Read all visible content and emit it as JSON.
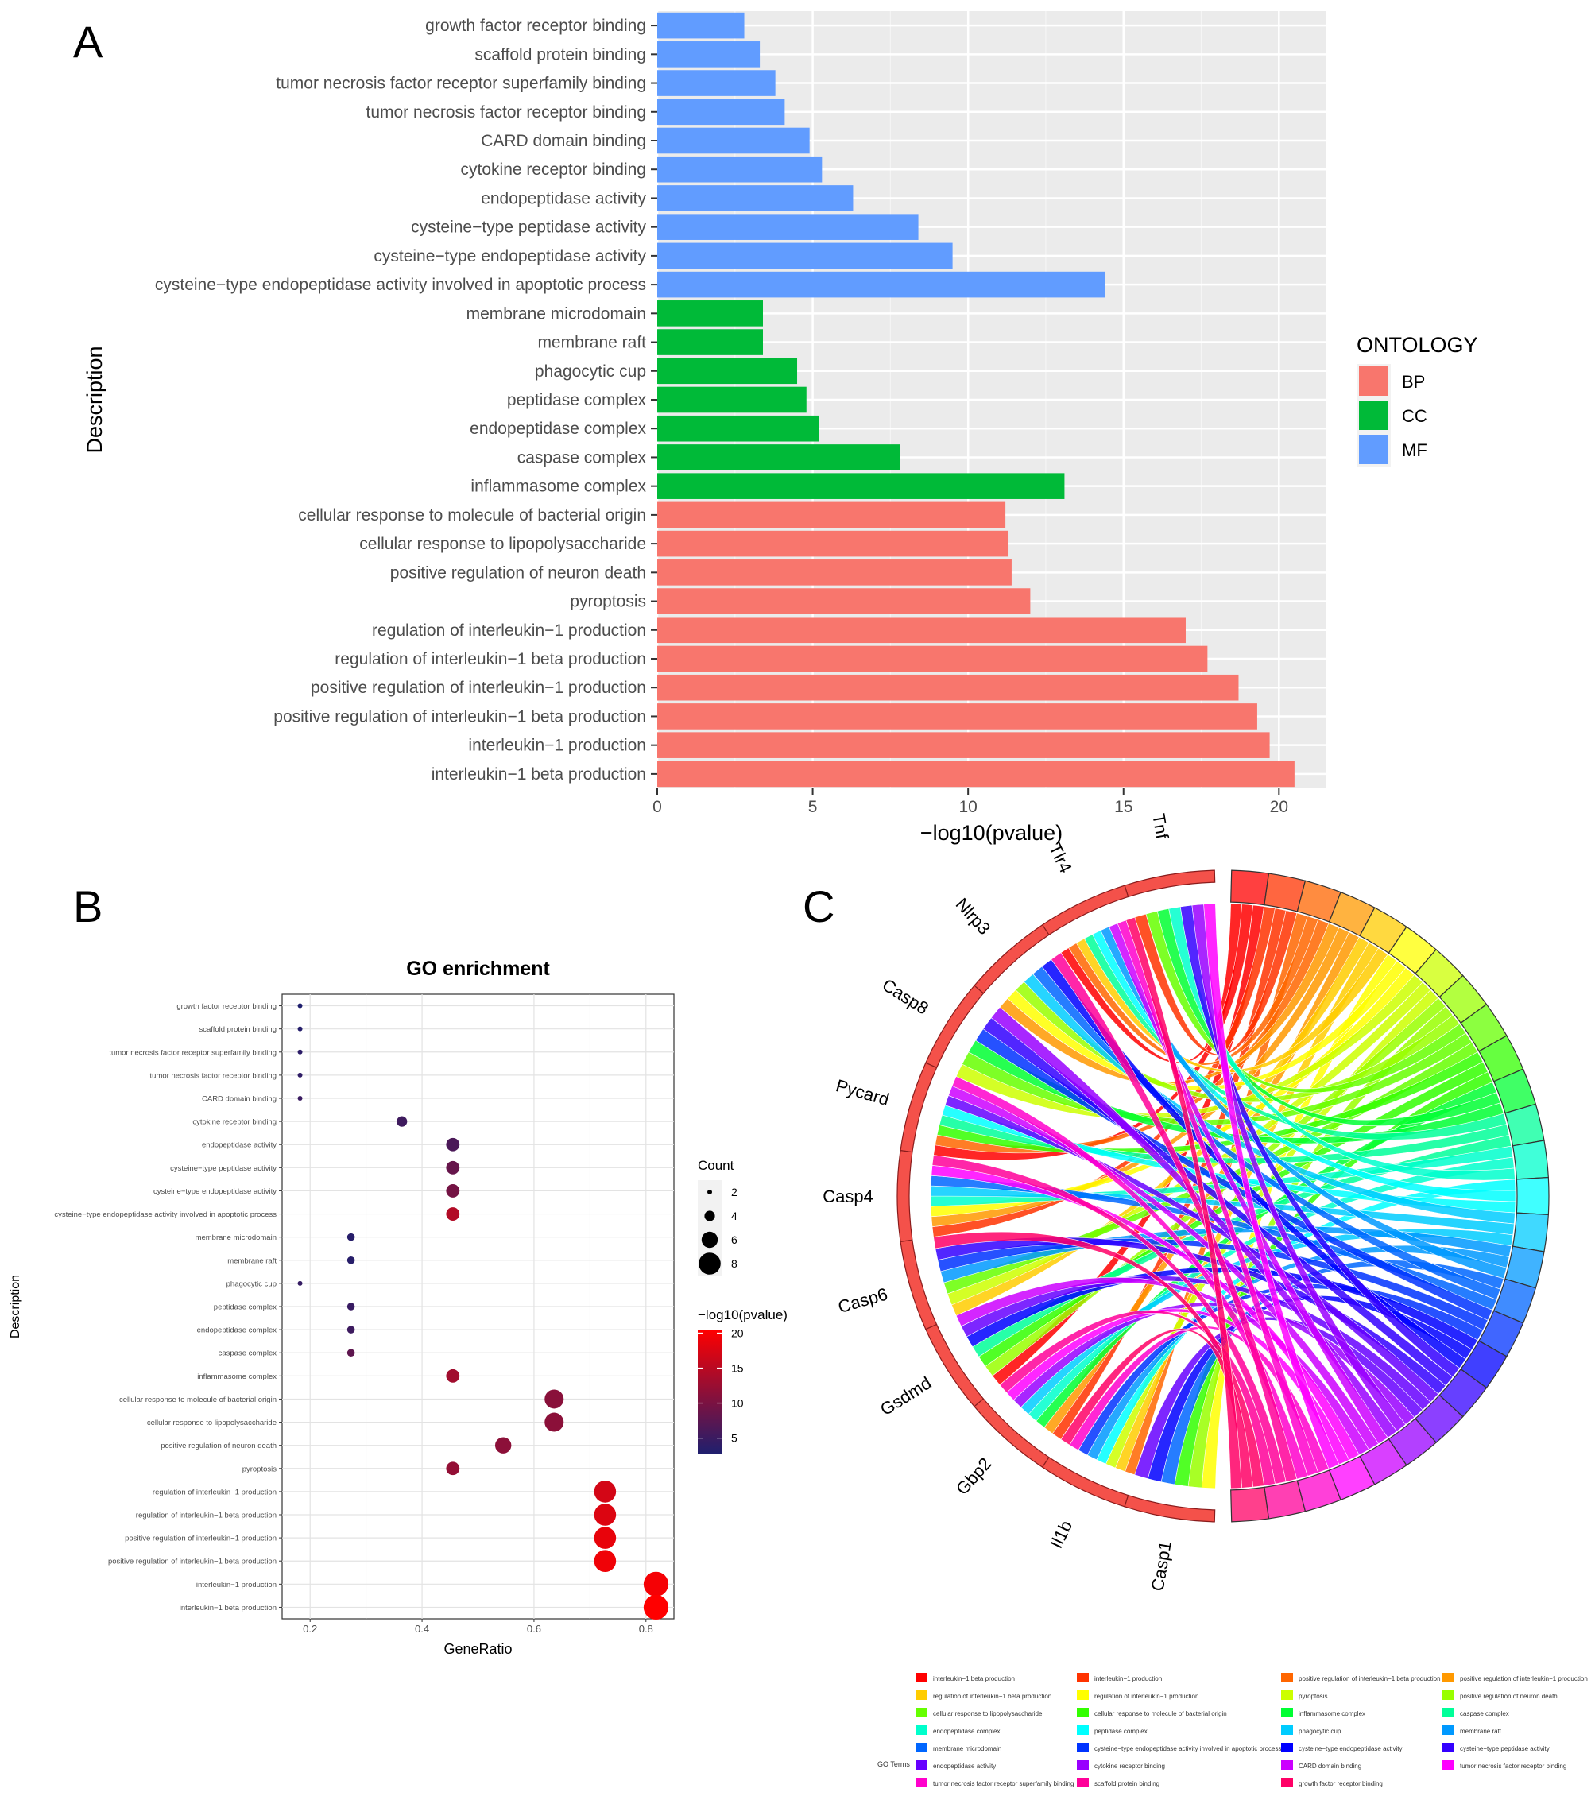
{
  "panels": {
    "a_letter": "A",
    "b_letter": "B",
    "c_letter": "C"
  },
  "chart_data": [
    {
      "type": "bar",
      "orientation": "horizontal",
      "xlabel": "−log10(pvalue)",
      "ylabel": "Description",
      "xlim": [
        0,
        21.5
      ],
      "xticks": [
        0,
        5,
        10,
        15,
        20
      ],
      "grid": true,
      "legend": {
        "title": "ONTOLOGY",
        "position": "right",
        "entries": [
          "BP",
          "CC",
          "MF"
        ]
      },
      "colors": {
        "BP": "#F8766D",
        "CC": "#00BA38",
        "MF": "#619CFF"
      },
      "categories": [
        "growth factor receptor binding",
        "scaffold protein binding",
        "tumor necrosis factor receptor superfamily binding",
        "tumor necrosis factor receptor binding",
        "CARD domain binding",
        "cytokine receptor binding",
        "endopeptidase activity",
        "cysteine−type peptidase activity",
        "cysteine−type endopeptidase activity",
        "cysteine−type endopeptidase activity involved in apoptotic process",
        "membrane microdomain",
        "membrane raft",
        "phagocytic cup",
        "peptidase complex",
        "endopeptidase complex",
        "caspase complex",
        "inflammasome complex",
        "cellular response to molecule of bacterial origin",
        "cellular response to lipopolysaccharide",
        "positive regulation of neuron death",
        "pyroptosis",
        "regulation of interleukin−1 production",
        "regulation of interleukin−1 beta production",
        "positive regulation of interleukin−1 production",
        "positive regulation of interleukin−1 beta production",
        "interleukin−1 production",
        "interleukin−1 beta production"
      ],
      "values": [
        2.8,
        3.3,
        3.8,
        4.1,
        4.9,
        5.3,
        6.3,
        8.4,
        9.5,
        14.4,
        3.4,
        3.4,
        4.5,
        4.8,
        5.2,
        7.8,
        13.1,
        11.2,
        11.3,
        11.4,
        12.0,
        17.0,
        17.7,
        18.7,
        19.3,
        19.7,
        20.5
      ],
      "ontology": [
        "MF",
        "MF",
        "MF",
        "MF",
        "MF",
        "MF",
        "MF",
        "MF",
        "MF",
        "MF",
        "CC",
        "CC",
        "CC",
        "CC",
        "CC",
        "CC",
        "CC",
        "BP",
        "BP",
        "BP",
        "BP",
        "BP",
        "BP",
        "BP",
        "BP",
        "BP",
        "BP"
      ]
    },
    {
      "type": "scatter",
      "title": "GO enrichment",
      "xlabel": "GeneRatio",
      "ylabel": "Description",
      "xlim": [
        0.15,
        0.85
      ],
      "xticks": [
        0.2,
        0.4,
        0.6,
        0.8
      ],
      "grid": true,
      "size_legend": {
        "title": "Count",
        "values": [
          2,
          4,
          6,
          8
        ]
      },
      "color_legend": {
        "title": "−log10(pvalue)",
        "ticks": [
          5,
          10,
          15,
          20
        ],
        "low_color": "#1F1F6E",
        "high_color": "#FF0000",
        "min": 2.8,
        "max": 20.5
      },
      "categories": [
        "growth factor receptor binding",
        "scaffold protein binding",
        "tumor necrosis factor receptor superfamily binding",
        "tumor necrosis factor receptor binding",
        "CARD domain binding",
        "cytokine receptor binding",
        "endopeptidase activity",
        "cysteine−type peptidase activity",
        "cysteine−type endopeptidase activity",
        "cysteine−type endopeptidase activity involved in apoptotic process",
        "membrane microdomain",
        "membrane raft",
        "phagocytic cup",
        "peptidase complex",
        "endopeptidase complex",
        "caspase complex",
        "inflammasome complex",
        "cellular response to molecule of bacterial origin",
        "cellular response to lipopolysaccharide",
        "positive regulation of neuron death",
        "pyroptosis",
        "regulation of interleukin−1 production",
        "regulation of interleukin−1 beta production",
        "positive regulation of interleukin−1 production",
        "positive regulation of interleukin−1 beta production",
        "interleukin−1 production",
        "interleukin−1 beta production"
      ],
      "gene_ratio": [
        0.182,
        0.182,
        0.182,
        0.182,
        0.182,
        0.364,
        0.455,
        0.455,
        0.455,
        0.455,
        0.273,
        0.273,
        0.182,
        0.273,
        0.273,
        0.273,
        0.455,
        0.636,
        0.636,
        0.545,
        0.455,
        0.727,
        0.727,
        0.727,
        0.727,
        0.818,
        0.818
      ],
      "count": [
        2,
        2,
        2,
        2,
        2,
        4,
        5,
        5,
        5,
        5,
        3,
        3,
        2,
        3,
        3,
        3,
        5,
        7,
        7,
        6,
        5,
        8,
        8,
        8,
        8,
        9,
        9
      ],
      "neglog10p": [
        2.8,
        3.3,
        3.8,
        4.1,
        4.9,
        5.3,
        6.3,
        8.4,
        9.5,
        14.4,
        3.4,
        3.4,
        4.5,
        4.8,
        5.2,
        7.8,
        13.1,
        11.2,
        11.3,
        11.4,
        12.0,
        17.0,
        17.7,
        18.7,
        19.3,
        19.7,
        20.5
      ]
    },
    {
      "type": "chord",
      "genes": [
        "Tnf",
        "Tlr4",
        "Nlrp3",
        "Casp8",
        "Pycard",
        "Casp4",
        "Casp6",
        "Gsdmd",
        "Gbp2",
        "Il1b",
        "Casp1"
      ],
      "gene_color": "#F4514A",
      "legend_title": "GO Terms",
      "terms": [
        {
          "label": "interleukin−1 beta production",
          "color": "#FF0000"
        },
        {
          "label": "interleukin−1 production",
          "color": "#FF3300"
        },
        {
          "label": "positive regulation of interleukin−1 beta production",
          "color": "#FF6600"
        },
        {
          "label": "positive regulation of interleukin−1 production",
          "color": "#FF9900"
        },
        {
          "label": "regulation of interleukin−1 beta production",
          "color": "#FFCC00"
        },
        {
          "label": "regulation of interleukin−1 production",
          "color": "#FFFF00"
        },
        {
          "label": "pyroptosis",
          "color": "#CCFF00"
        },
        {
          "label": "positive regulation of neuron death",
          "color": "#99FF00"
        },
        {
          "label": "cellular response to lipopolysaccharide",
          "color": "#66FF00"
        },
        {
          "label": "cellular response to molecule of bacterial origin",
          "color": "#33FF00"
        },
        {
          "label": "inflammasome complex",
          "color": "#00FF33"
        },
        {
          "label": "caspase complex",
          "color": "#00FF99"
        },
        {
          "label": "endopeptidase complex",
          "color": "#00FFCC"
        },
        {
          "label": "peptidase complex",
          "color": "#00FFFF"
        },
        {
          "label": "phagocytic cup",
          "color": "#00CCFF"
        },
        {
          "label": "membrane raft",
          "color": "#0099FF"
        },
        {
          "label": "membrane microdomain",
          "color": "#0066FF"
        },
        {
          "label": "cysteine−type endopeptidase activity involved in apoptotic process",
          "color": "#0033FF"
        },
        {
          "label": "cysteine−type endopeptidase activity",
          "color": "#0000FF"
        },
        {
          "label": "cysteine−type peptidase activity",
          "color": "#3300FF"
        },
        {
          "label": "endopeptidase activity",
          "color": "#6600FF"
        },
        {
          "label": "cytokine receptor binding",
          "color": "#9900FF"
        },
        {
          "label": "CARD domain binding",
          "color": "#CC00FF"
        },
        {
          "label": "tumor necrosis factor receptor binding",
          "color": "#FF00FF"
        },
        {
          "label": "tumor necrosis factor receptor superfamily binding",
          "color": "#FF00CC"
        },
        {
          "label": "scaffold protein binding",
          "color": "#FF0099"
        },
        {
          "label": "growth factor receptor binding",
          "color": "#FF0066"
        }
      ]
    }
  ]
}
